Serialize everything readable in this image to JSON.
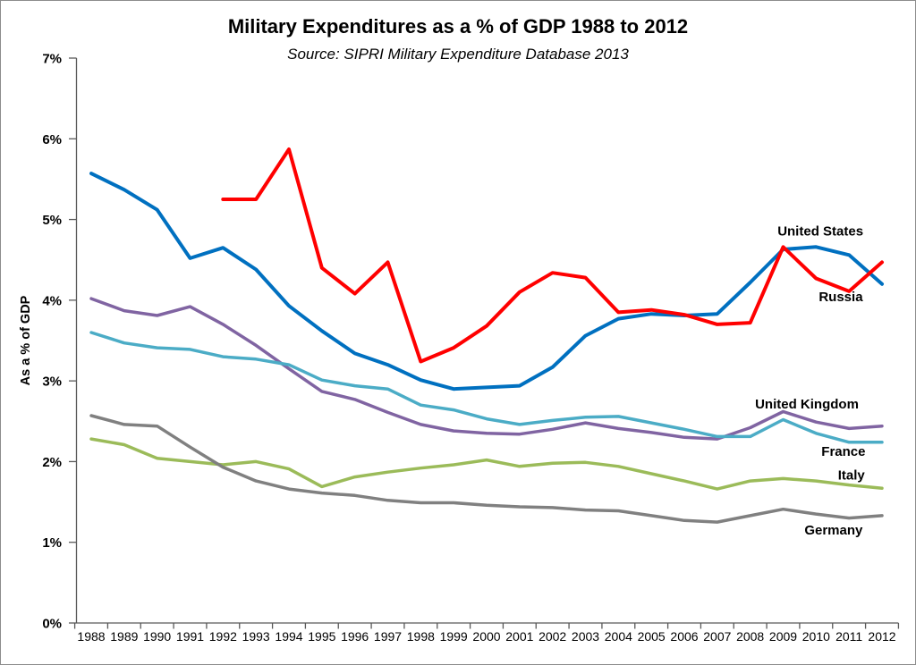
{
  "page": {
    "background": "#ffffff",
    "border_color": "#8c8c8c",
    "axis_color": "#595959",
    "text_color": "#000000"
  },
  "chart_data": {
    "type": "line",
    "title": "Military Expenditures as a % of GDP 1988 to 2012",
    "subtitle": "Source: SIPRI Military Expenditure Database 2013",
    "ylabel": "As a % of GDP",
    "xlabel": "",
    "grid": false,
    "legend_position": "inline-labels-right",
    "ylim": [
      0,
      7
    ],
    "ytick_labels": [
      "0%",
      "1%",
      "2%",
      "3%",
      "4%",
      "5%",
      "6%",
      "7%"
    ],
    "years": [
      1988,
      1989,
      1990,
      1991,
      1992,
      1993,
      1994,
      1995,
      1996,
      1997,
      1998,
      1999,
      2000,
      2001,
      2002,
      2003,
      2004,
      2005,
      2006,
      2007,
      2008,
      2009,
      2010,
      2011,
      2012
    ],
    "series": [
      {
        "name": "United States",
        "color": "#0070C0",
        "width": 4,
        "values": [
          5.57,
          5.37,
          5.12,
          4.52,
          4.65,
          4.38,
          3.93,
          3.62,
          3.34,
          3.2,
          3.01,
          2.9,
          2.92,
          2.94,
          3.17,
          3.56,
          3.77,
          3.83,
          3.81,
          3.83,
          4.22,
          4.63,
          4.66,
          4.56,
          4.2
        ]
      },
      {
        "name": "Russia",
        "color": "#FF0000",
        "width": 4,
        "values": [
          null,
          null,
          null,
          null,
          5.25,
          5.25,
          5.87,
          4.4,
          4.08,
          4.47,
          3.24,
          3.41,
          3.68,
          4.1,
          4.34,
          4.28,
          3.85,
          3.88,
          3.82,
          3.7,
          3.72,
          4.66,
          4.27,
          4.11,
          4.47
        ]
      },
      {
        "name": "United Kingdom",
        "color": "#8064A2",
        "width": 3.5,
        "values": [
          4.02,
          3.87,
          3.81,
          3.92,
          3.7,
          3.44,
          3.15,
          2.87,
          2.77,
          2.61,
          2.46,
          2.38,
          2.35,
          2.34,
          2.4,
          2.48,
          2.41,
          2.36,
          2.3,
          2.28,
          2.42,
          2.62,
          2.49,
          2.41,
          2.44
        ]
      },
      {
        "name": "France",
        "color": "#4BACC6",
        "width": 3.5,
        "values": [
          3.6,
          3.47,
          3.41,
          3.39,
          3.3,
          3.27,
          3.2,
          3.01,
          2.94,
          2.9,
          2.7,
          2.64,
          2.53,
          2.46,
          2.51,
          2.55,
          2.56,
          2.48,
          2.4,
          2.31,
          2.31,
          2.52,
          2.35,
          2.24,
          2.24
        ]
      },
      {
        "name": "Italy",
        "color": "#9BBB59",
        "width": 3.5,
        "values": [
          2.28,
          2.21,
          2.04,
          2.0,
          1.96,
          2.0,
          1.91,
          1.69,
          1.81,
          1.87,
          1.92,
          1.96,
          2.02,
          1.94,
          1.98,
          1.99,
          1.94,
          1.85,
          1.76,
          1.66,
          1.76,
          1.79,
          1.76,
          1.71,
          1.67
        ]
      },
      {
        "name": "Germany",
        "color": "#808080",
        "width": 3.5,
        "values": [
          2.57,
          2.46,
          2.44,
          2.18,
          1.93,
          1.76,
          1.66,
          1.61,
          1.58,
          1.52,
          1.49,
          1.49,
          1.46,
          1.44,
          1.43,
          1.4,
          1.39,
          1.33,
          1.27,
          1.25,
          1.33,
          1.41,
          1.35,
          1.3,
          1.33
        ]
      }
    ],
    "annotations": [
      {
        "text": "United States",
        "year": 2010.13,
        "value": 4.86
      },
      {
        "text": "Russia",
        "year": 2010.75,
        "value": 4.05
      },
      {
        "text": "United Kingdom",
        "year": 2009.72,
        "value": 2.72
      },
      {
        "text": "France",
        "year": 2010.83,
        "value": 2.13
      },
      {
        "text": "Italy",
        "year": 2011.07,
        "value": 1.84
      },
      {
        "text": "Germany",
        "year": 2010.53,
        "value": 1.16
      }
    ]
  }
}
